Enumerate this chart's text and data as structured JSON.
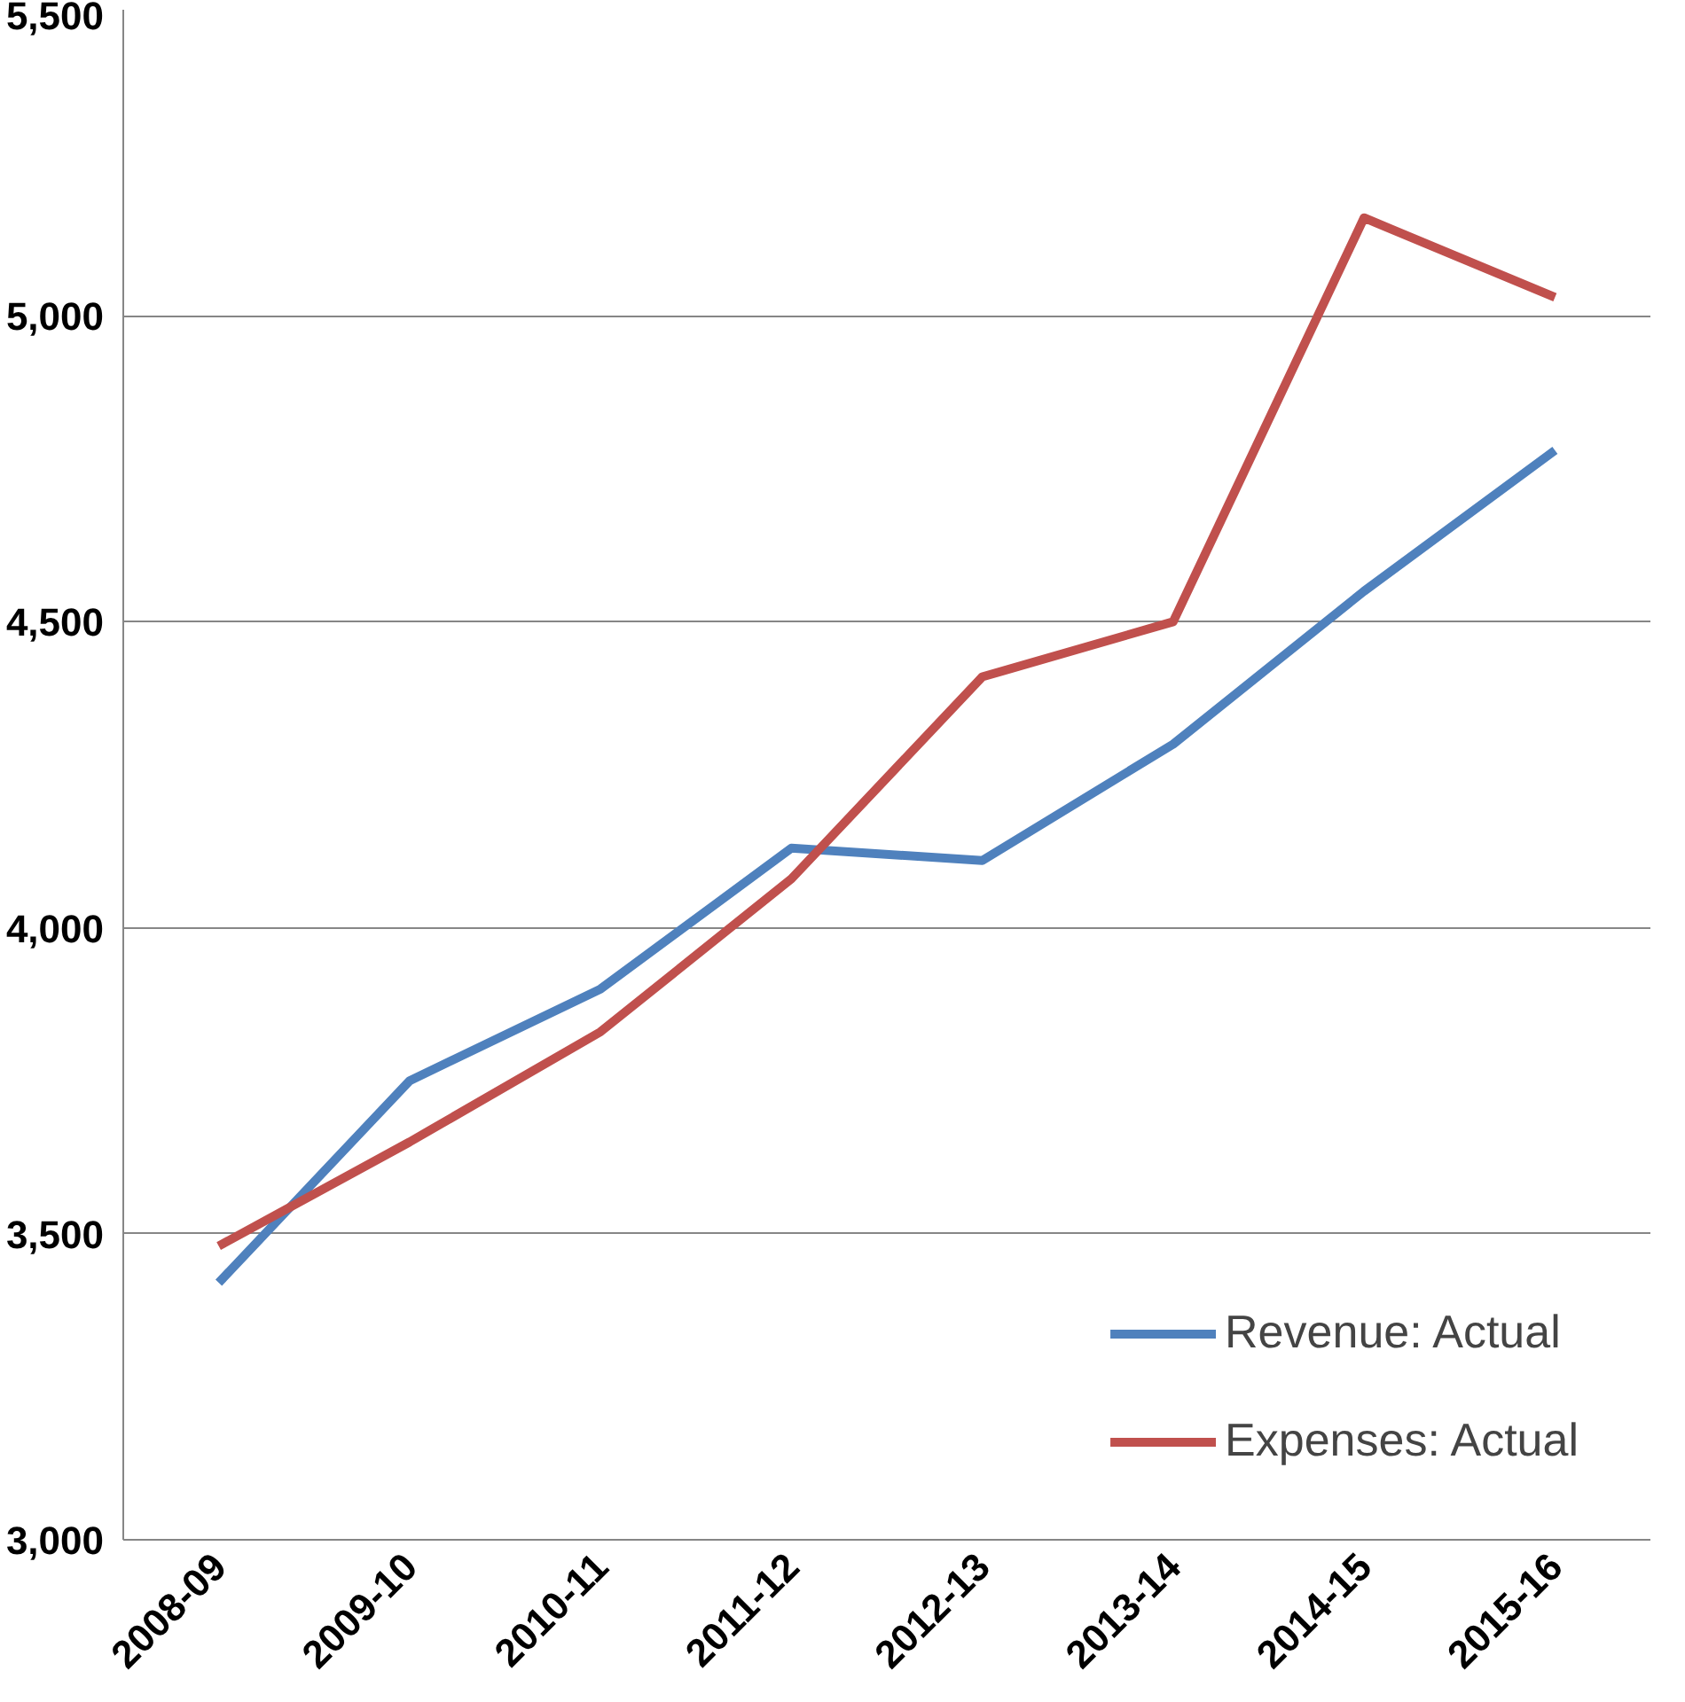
{
  "chart_data": {
    "type": "line",
    "categories": [
      "2008-09",
      "2009-10",
      "2010-11",
      "2011-12",
      "2012-13",
      "2013-14",
      "2014-15",
      "2015-16"
    ],
    "series": [
      {
        "name": "Revenue: Actual",
        "color": "#4f81bd",
        "values": [
          3420,
          3750,
          3900,
          4130,
          4110,
          4300,
          4550,
          4780
        ]
      },
      {
        "name": "Expenses: Actual",
        "color": "#c0504d",
        "values": [
          3480,
          3650,
          3830,
          4080,
          4410,
          4500,
          5160,
          5030
        ]
      }
    ],
    "ylim": [
      3000,
      5500
    ],
    "yticks": [
      {
        "value": 3000,
        "label": "3,000"
      },
      {
        "value": 3500,
        "label": "3,500"
      },
      {
        "value": 4000,
        "label": "4,000"
      },
      {
        "value": 4500,
        "label": "4,500"
      },
      {
        "value": 5000,
        "label": "5,000"
      },
      {
        "value": 5500,
        "label": "5,500"
      }
    ],
    "grid": "y",
    "legend": "bottom right",
    "marker": "none",
    "line_style": "solid"
  }
}
